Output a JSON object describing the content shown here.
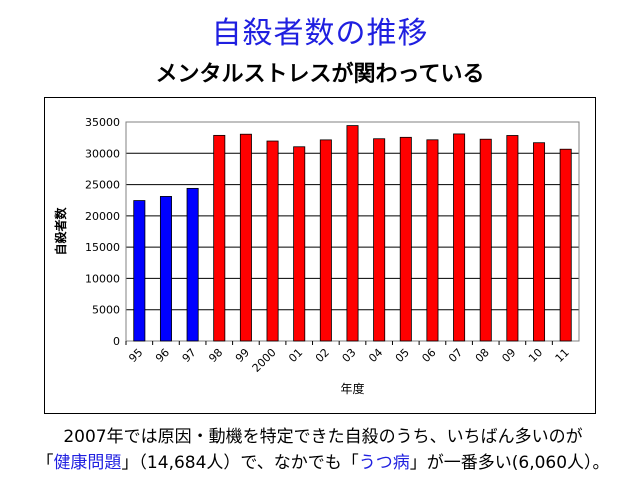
{
  "slide": {
    "title": "自殺者数の推移",
    "subtitle": "メンタルストレスが関わっている"
  },
  "caption": {
    "line1": "2007年では原因・動機を特定できた自殺のうち、いちばん多いのが",
    "open1": "「",
    "highlight1": "健康問題",
    "mid1": "」（14,684人）で、なかでも「",
    "highlight2": "うつ病",
    "end1": "」が一番多い(6,060人）。"
  },
  "colors": {
    "title": "#1f1fe0",
    "bar_early": "#0000ff",
    "bar_late": "#ff0000",
    "highlight": "#1f1fe0"
  },
  "chart_data": {
    "type": "bar",
    "categories": [
      "95",
      "96",
      "97",
      "98",
      "99",
      "2000",
      "01",
      "02",
      "03",
      "04",
      "05",
      "06",
      "07",
      "08",
      "09",
      "10",
      "11"
    ],
    "values": [
      22445,
      23104,
      24391,
      32863,
      33048,
      31957,
      31042,
      32143,
      34427,
      32325,
      32552,
      32155,
      33093,
      32249,
      32845,
      31690,
      30651
    ],
    "bar_colors": [
      "#0000ff",
      "#0000ff",
      "#0000ff",
      "#ff0000",
      "#ff0000",
      "#ff0000",
      "#ff0000",
      "#ff0000",
      "#ff0000",
      "#ff0000",
      "#ff0000",
      "#ff0000",
      "#ff0000",
      "#ff0000",
      "#ff0000",
      "#ff0000",
      "#ff0000"
    ],
    "xlabel": "年度",
    "ylabel": "自殺者数",
    "ylim": [
      0,
      35000
    ],
    "yticks": [
      "0",
      "5000",
      "10000",
      "15000",
      "20000",
      "25000",
      "30000",
      "35000"
    ],
    "grid": true,
    "legend": "none"
  }
}
